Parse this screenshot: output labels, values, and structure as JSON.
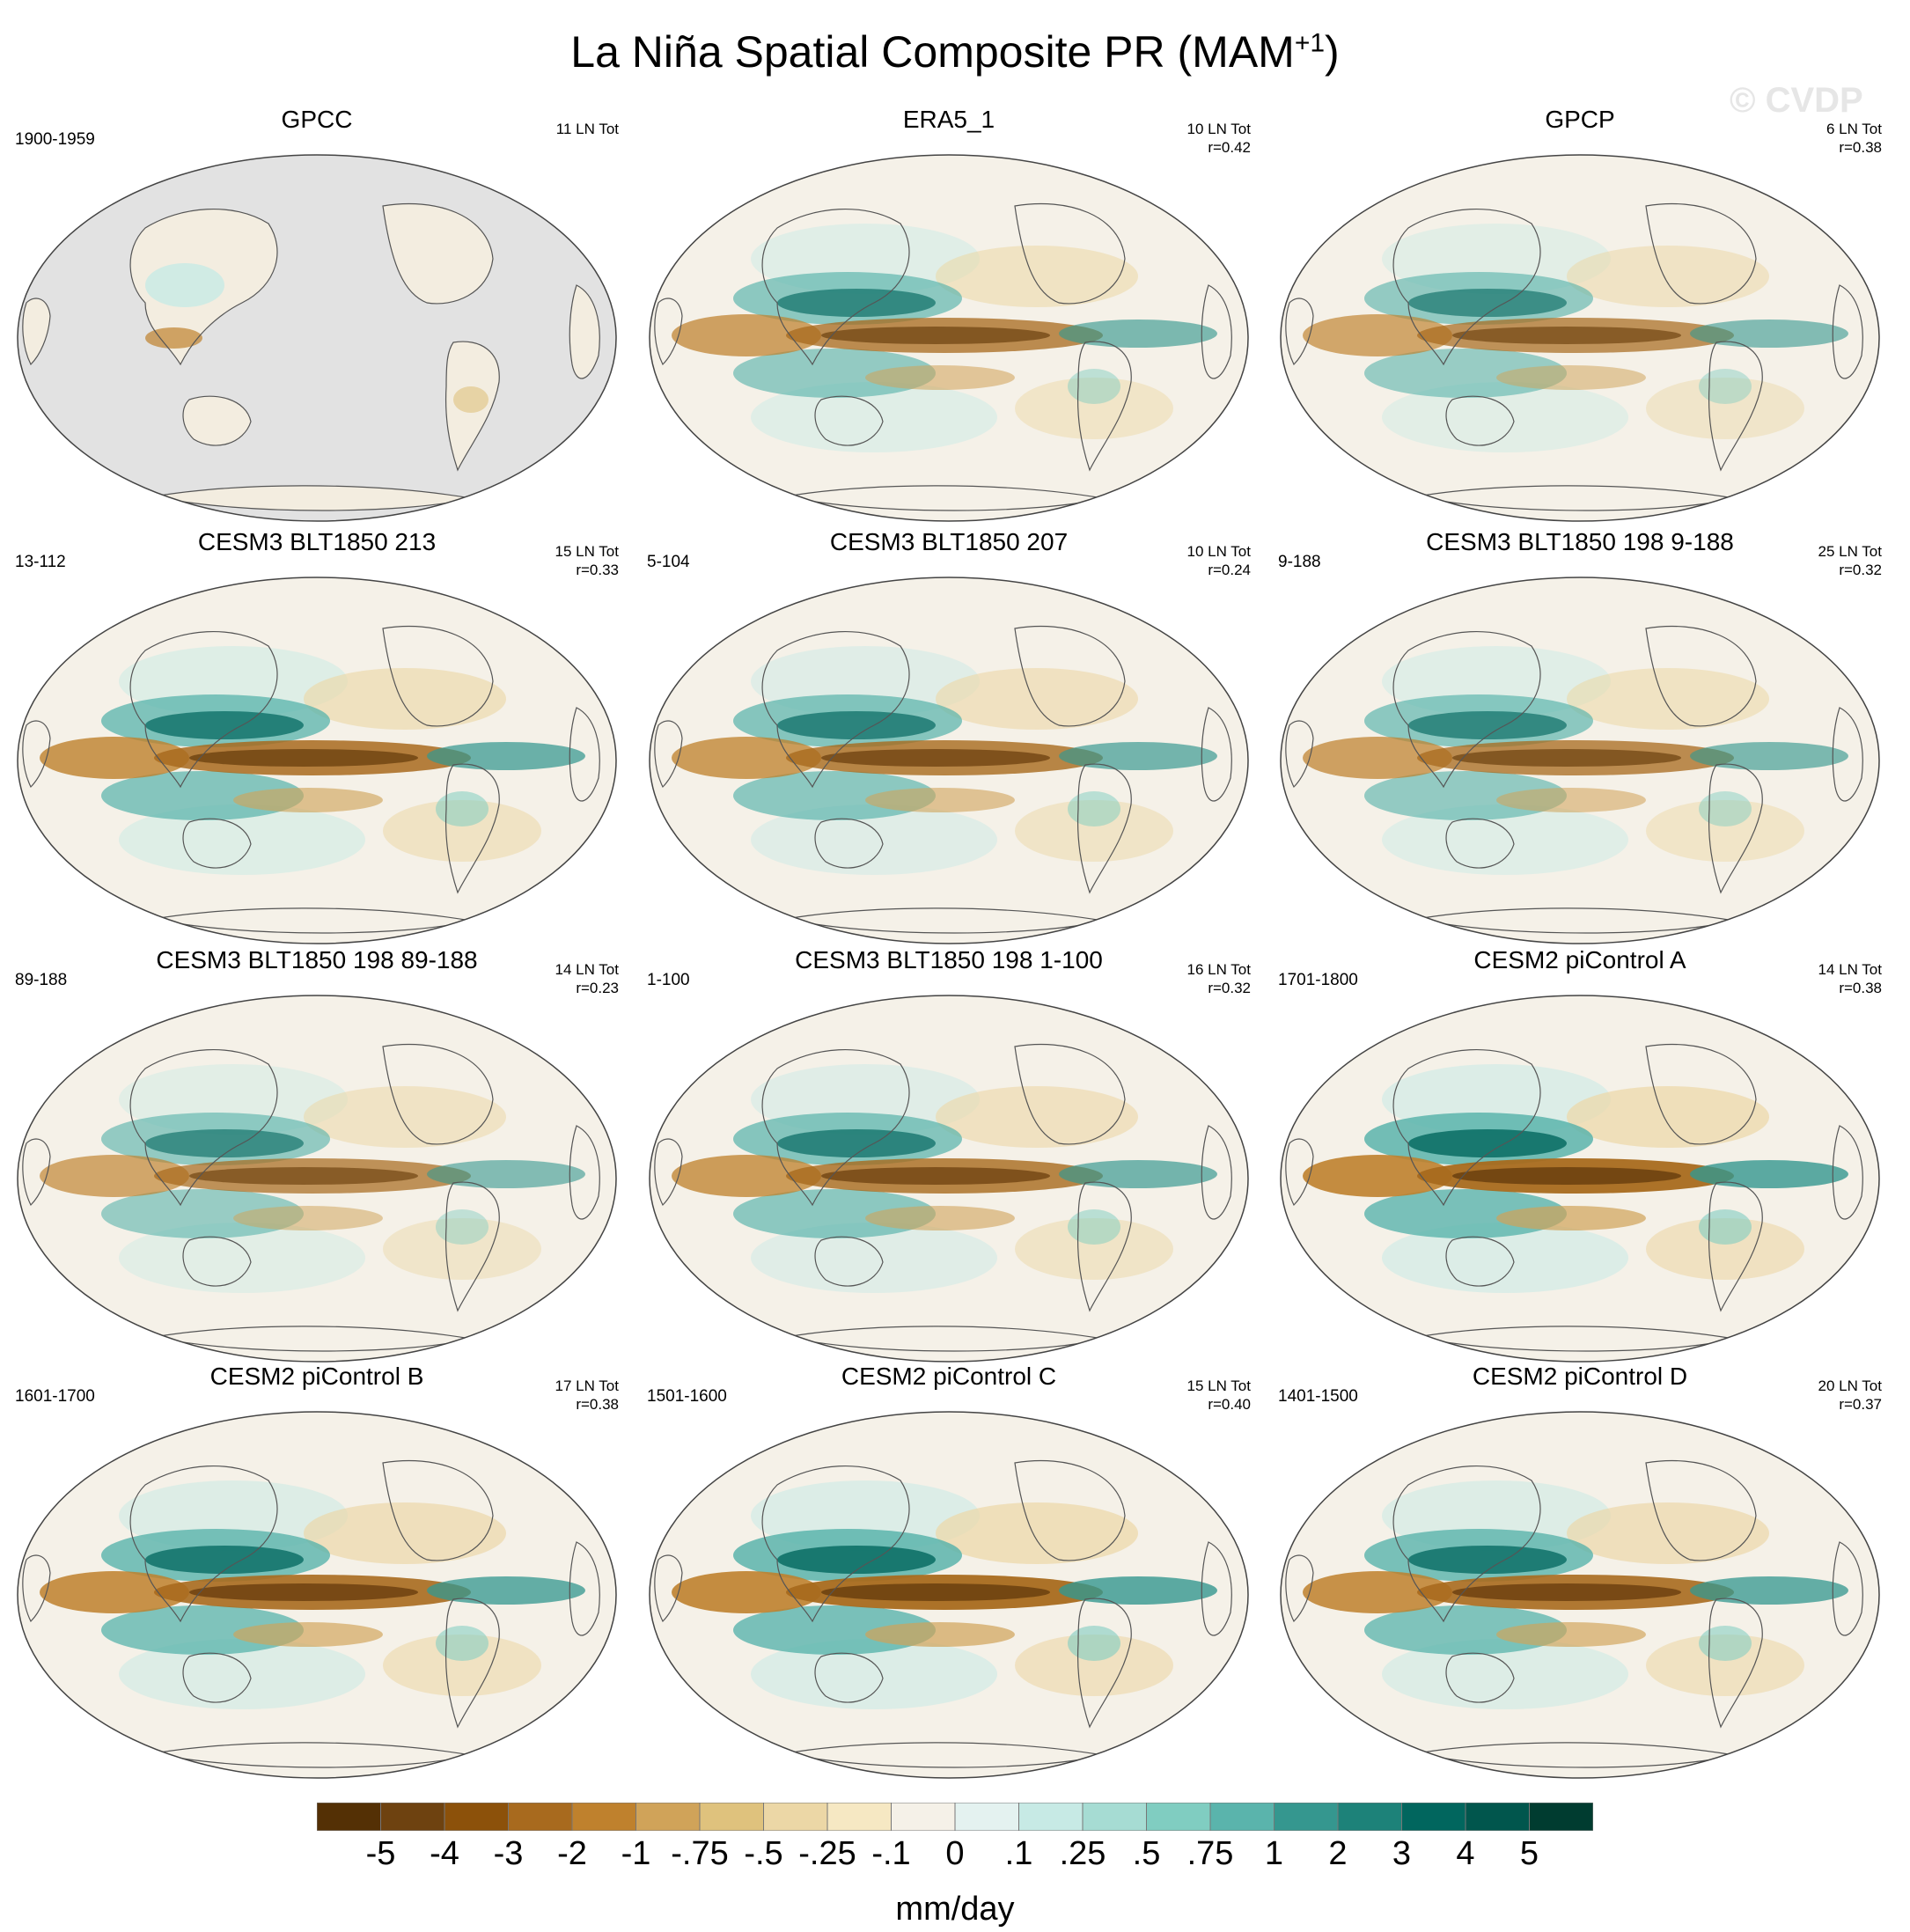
{
  "title": "La Niña Spatial Composite PR (MAM",
  "title_sup": "+1",
  "title_end": ")",
  "watermark": "© CVDP",
  "panels": [
    {
      "title": "GPCC",
      "period": "1900-1959",
      "count": "11 LN Tot",
      "r": "",
      "land_only": true,
      "strength": 0.25
    },
    {
      "title": "ERA5_1",
      "period": "",
      "count": "10 LN Tot",
      "r": "r=0.42",
      "land_only": false,
      "strength": 0.8
    },
    {
      "title": "GPCP",
      "period": "",
      "count": "6 LN Tot",
      "r": "r=0.38",
      "land_only": false,
      "strength": 0.75
    },
    {
      "title": "CESM3 BLT1850 213",
      "period": "13-112",
      "count": "15 LN Tot",
      "r": "r=0.33",
      "land_only": false,
      "strength": 0.9
    },
    {
      "title": "CESM3 BLT1850 207",
      "period": "5-104",
      "count": "10 LN Tot",
      "r": "r=0.24",
      "land_only": false,
      "strength": 0.85
    },
    {
      "title": "CESM3 BLT1850 198 9-188",
      "period": "9-188",
      "count": "25 LN Tot",
      "r": "r=0.32",
      "land_only": false,
      "strength": 0.8
    },
    {
      "title": "CESM3 BLT1850 198 89-188",
      "period": "89-188",
      "count": "14 LN Tot",
      "r": "r=0.23",
      "land_only": false,
      "strength": 0.75
    },
    {
      "title": "CESM3 BLT1850 198 1-100",
      "period": "1-100",
      "count": "16 LN Tot",
      "r": "r=0.32",
      "land_only": false,
      "strength": 0.85
    },
    {
      "title": "CESM2 piControl A",
      "period": "1701-1800",
      "count": "14 LN Tot",
      "r": "r=0.38",
      "land_only": false,
      "strength": 1.0
    },
    {
      "title": "CESM2 piControl B",
      "period": "1601-1700",
      "count": "17 LN Tot",
      "r": "r=0.38",
      "land_only": false,
      "strength": 0.95
    },
    {
      "title": "CESM2 piControl C",
      "period": "1501-1600",
      "count": "15 LN Tot",
      "r": "r=0.40",
      "land_only": false,
      "strength": 1.0
    },
    {
      "title": "CESM2 piControl D",
      "period": "1401-1500",
      "count": "20 LN Tot",
      "r": "r=0.37",
      "land_only": false,
      "strength": 0.95
    }
  ],
  "colorbar": {
    "label": "mm/day",
    "ticks": [
      "-5",
      "-4",
      "-3",
      "-2",
      "-1",
      "-.75",
      "-.5",
      "-.25",
      "-.1",
      "0",
      ".1",
      ".25",
      ".5",
      ".75",
      "1",
      "2",
      "3",
      "4",
      "5"
    ],
    "colors": [
      "#543005",
      "#6e4210",
      "#8c510a",
      "#a86a1e",
      "#bf812d",
      "#d0a359",
      "#dfc27d",
      "#ecd7a6",
      "#f6e8c3",
      "#f5f1e8",
      "#e4f2f0",
      "#c7eae5",
      "#a6dcd3",
      "#80cdc1",
      "#5ab4ac",
      "#35978f",
      "#1d8279",
      "#01665e",
      "#01564d",
      "#003c30"
    ]
  }
}
